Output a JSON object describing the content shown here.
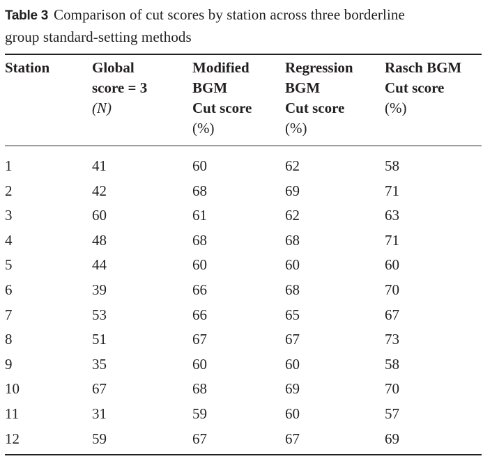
{
  "caption": {
    "label": "Table 3",
    "text_line1": "Comparison of cut scores by station across three borderline",
    "text_line2": "group standard-setting methods"
  },
  "headers": [
    {
      "lines": [
        "Station"
      ],
      "unit": ""
    },
    {
      "lines": [
        "Global",
        "score = 3"
      ],
      "unit": "(N)"
    },
    {
      "lines": [
        "Modified",
        "BGM",
        "Cut score"
      ],
      "unit": "(%)"
    },
    {
      "lines": [
        "Regression",
        "BGM",
        "Cut score"
      ],
      "unit": "(%)"
    },
    {
      "lines": [
        "Rasch BGM",
        "Cut score"
      ],
      "unit": "(%)"
    }
  ],
  "rows": [
    [
      "1",
      "41",
      "60",
      "62",
      "58"
    ],
    [
      "2",
      "42",
      "68",
      "69",
      "71"
    ],
    [
      "3",
      "60",
      "61",
      "62",
      "63"
    ],
    [
      "4",
      "48",
      "68",
      "68",
      "71"
    ],
    [
      "5",
      "44",
      "60",
      "60",
      "60"
    ],
    [
      "6",
      "39",
      "66",
      "68",
      "70"
    ],
    [
      "7",
      "53",
      "66",
      "65",
      "67"
    ],
    [
      "8",
      "51",
      "67",
      "67",
      "73"
    ],
    [
      "9",
      "35",
      "60",
      "60",
      "58"
    ],
    [
      "10",
      "67",
      "68",
      "69",
      "70"
    ],
    [
      "11",
      "31",
      "59",
      "60",
      "57"
    ],
    [
      "12",
      "59",
      "67",
      "67",
      "69"
    ]
  ]
}
